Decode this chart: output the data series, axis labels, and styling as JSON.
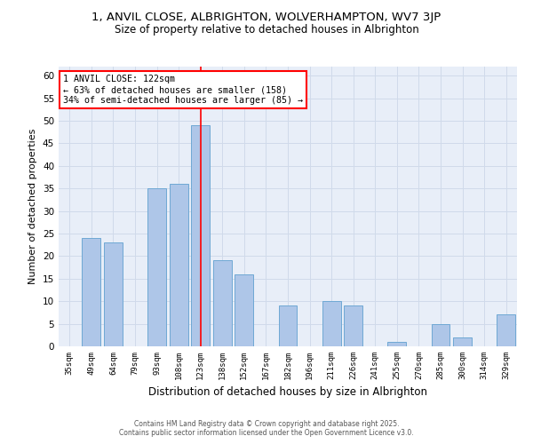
{
  "title_line1": "1, ANVIL CLOSE, ALBRIGHTON, WOLVERHAMPTON, WV7 3JP",
  "title_line2": "Size of property relative to detached houses in Albrighton",
  "xlabel": "Distribution of detached houses by size in Albrighton",
  "ylabel": "Number of detached properties",
  "categories": [
    "35sqm",
    "49sqm",
    "64sqm",
    "79sqm",
    "93sqm",
    "108sqm",
    "123sqm",
    "138sqm",
    "152sqm",
    "167sqm",
    "182sqm",
    "196sqm",
    "211sqm",
    "226sqm",
    "241sqm",
    "255sqm",
    "270sqm",
    "285sqm",
    "300sqm",
    "314sqm",
    "329sqm"
  ],
  "values": [
    0,
    24,
    23,
    0,
    35,
    36,
    49,
    19,
    16,
    0,
    9,
    0,
    10,
    9,
    0,
    1,
    0,
    5,
    2,
    0,
    7
  ],
  "bar_color": "#aec6e8",
  "bar_edge_color": "#6fa8d4",
  "vline_index": 6,
  "vline_color": "red",
  "ylim": [
    0,
    62
  ],
  "yticks": [
    0,
    5,
    10,
    15,
    20,
    25,
    30,
    35,
    40,
    45,
    50,
    55,
    60
  ],
  "annotation_title": "1 ANVIL CLOSE: 122sqm",
  "annotation_line1": "← 63% of detached houses are smaller (158)",
  "annotation_line2": "34% of semi-detached houses are larger (85) →",
  "footer_line1": "Contains HM Land Registry data © Crown copyright and database right 2025.",
  "footer_line2": "Contains public sector information licensed under the Open Government Licence v3.0.",
  "grid_color": "#d0daea",
  "background_color": "#e8eef8"
}
